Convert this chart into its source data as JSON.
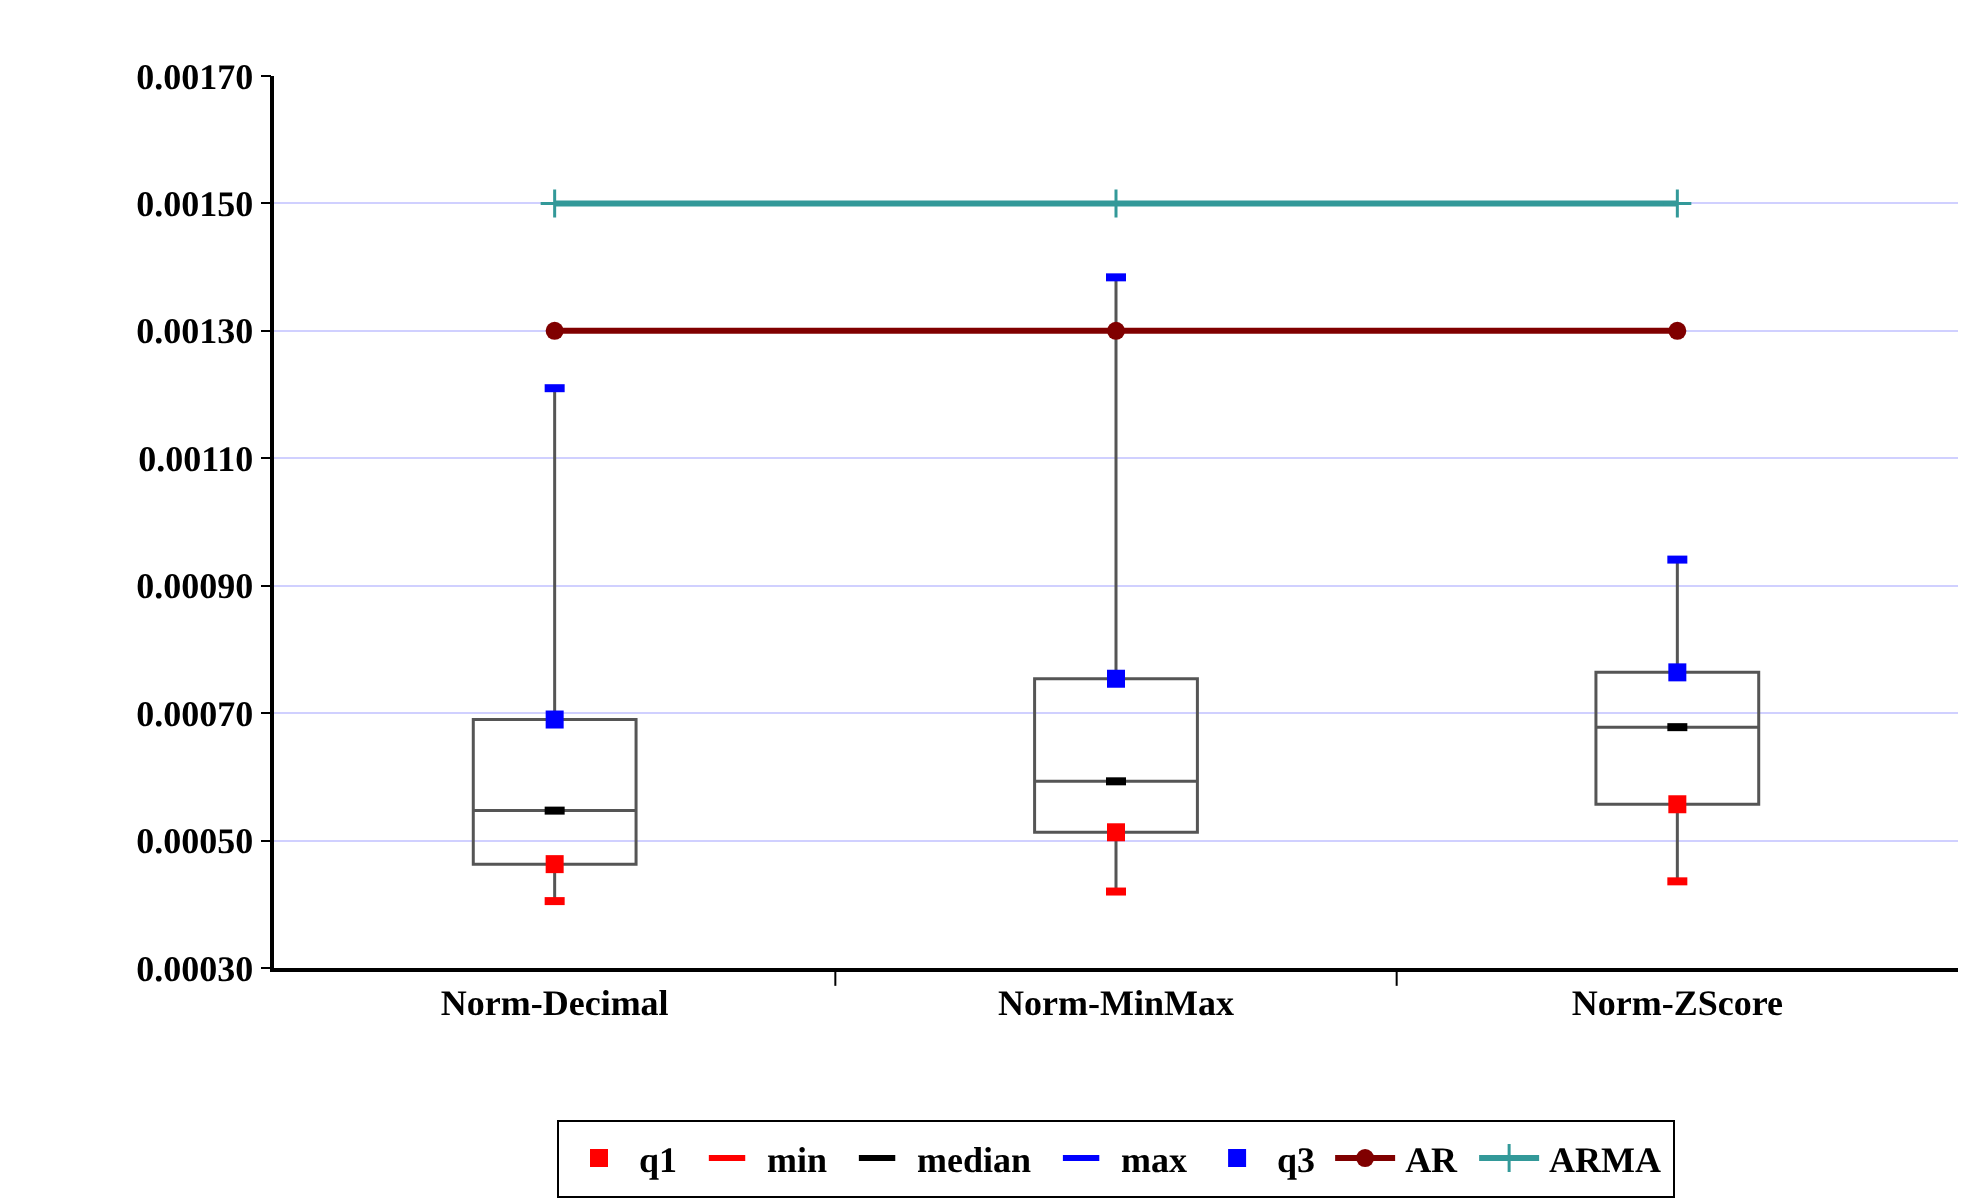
{
  "chart_data": {
    "type": "box",
    "categories": [
      "Norm-Decimal",
      "Norm-MinMax",
      "Norm-ZScore"
    ],
    "boxes": [
      {
        "low": 0.000405,
        "q1": 0.000463,
        "median": 0.000547,
        "q3": 0.00069,
        "high": 0.00121
      },
      {
        "low": 0.00042,
        "q1": 0.000513,
        "median": 0.000593,
        "q3": 0.000754,
        "high": 0.001384
      },
      {
        "low": 0.000436,
        "q1": 0.000557,
        "median": 0.000678,
        "q3": 0.000764,
        "high": 0.000941
      }
    ],
    "series": [
      {
        "name": "q1",
        "type": "scatter",
        "marker": "square",
        "color": "#ff0000",
        "values": [
          0.000463,
          0.000513,
          0.000557
        ]
      },
      {
        "name": "min",
        "type": "scatter",
        "color": "#ff0000",
        "values": [
          0.000405,
          0.00042,
          0.000436
        ]
      },
      {
        "name": "median",
        "type": "scatter",
        "color": "#000000",
        "values": [
          0.000547,
          0.000593,
          0.000678
        ]
      },
      {
        "name": "max",
        "type": "scatter",
        "color": "#0000ff",
        "values": [
          0.00121,
          0.001384,
          0.000941
        ]
      },
      {
        "name": "q3",
        "type": "scatter",
        "marker": "square",
        "color": "#0000ff",
        "values": [
          0.00069,
          0.000754,
          0.000764
        ]
      },
      {
        "name": "AR",
        "type": "line",
        "marker": "circle",
        "color": "#800000",
        "values": [
          0.0013,
          0.0013,
          0.0013
        ]
      },
      {
        "name": "ARMA",
        "type": "line",
        "marker": "cross",
        "color": "#339999",
        "values": [
          0.0015,
          0.0015,
          0.0015
        ]
      }
    ],
    "ylim": [
      0.0003,
      0.0017
    ],
    "yticks": [
      {
        "value": 0.0003,
        "label": "0.00030"
      },
      {
        "value": 0.0005,
        "label": "0.00050"
      },
      {
        "value": 0.0007,
        "label": "0.00070"
      },
      {
        "value": 0.0009,
        "label": "0.00090"
      },
      {
        "value": 0.0011,
        "label": "0.00110"
      },
      {
        "value": 0.0013,
        "label": "0.00130"
      },
      {
        "value": 0.0015,
        "label": "0.00150"
      },
      {
        "value": 0.0017,
        "label": "0.00170"
      }
    ],
    "grid": "y",
    "legend": "bottom"
  }
}
